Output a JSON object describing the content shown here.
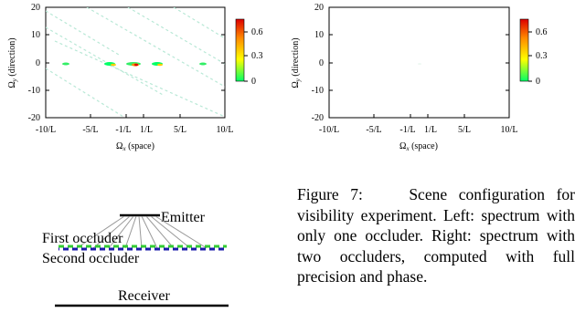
{
  "plots": [
    {
      "y_ticks": [
        "20",
        "10",
        "0",
        "-10",
        "-20"
      ],
      "x_ticks": [
        "-10/L",
        "-5/L",
        "-1/L",
        "1/L",
        "5/L",
        "10/L"
      ],
      "y_label": "Ω",
      "y_label_sub": "y",
      "y_label_rest": " (direction)",
      "x_label": "Ω",
      "x_label_sub": "x",
      "x_label_rest": " (space)",
      "colorbar_ticks": [
        "0.6",
        "0.3",
        "0"
      ]
    },
    {
      "y_ticks": [
        "20",
        "10",
        "0",
        "-10",
        "-20"
      ],
      "x_ticks": [
        "-10/L",
        "-5/L",
        "-1/L",
        "1/L",
        "5/L",
        "10/L"
      ],
      "y_label": "Ω",
      "y_label_sub": "y",
      "y_label_rest": " (direction)",
      "x_label": "Ω",
      "x_label_sub": "x",
      "x_label_rest": " (space)",
      "colorbar_ticks": [
        "0.6",
        "0.3",
        "0"
      ]
    }
  ],
  "diagram": {
    "emitter": "Emitter",
    "first_occluder": "First occluder",
    "second_occluder": "Second occluder",
    "receiver": "Receiver",
    "colors": {
      "first_occluder": "#33cc33",
      "second_occluder": "#1a1aaa"
    }
  },
  "caption": {
    "label": "Figure 7:",
    "text": "Scene configuration for visibility experiment. Left: spectrum with only one occluder. Right: spectrum with two occluders, computed with full precision and phase."
  },
  "colorbar_colors": [
    "#00ff66",
    "#ffff00",
    "#ff8800",
    "#ff0000",
    "#cc0000"
  ]
}
